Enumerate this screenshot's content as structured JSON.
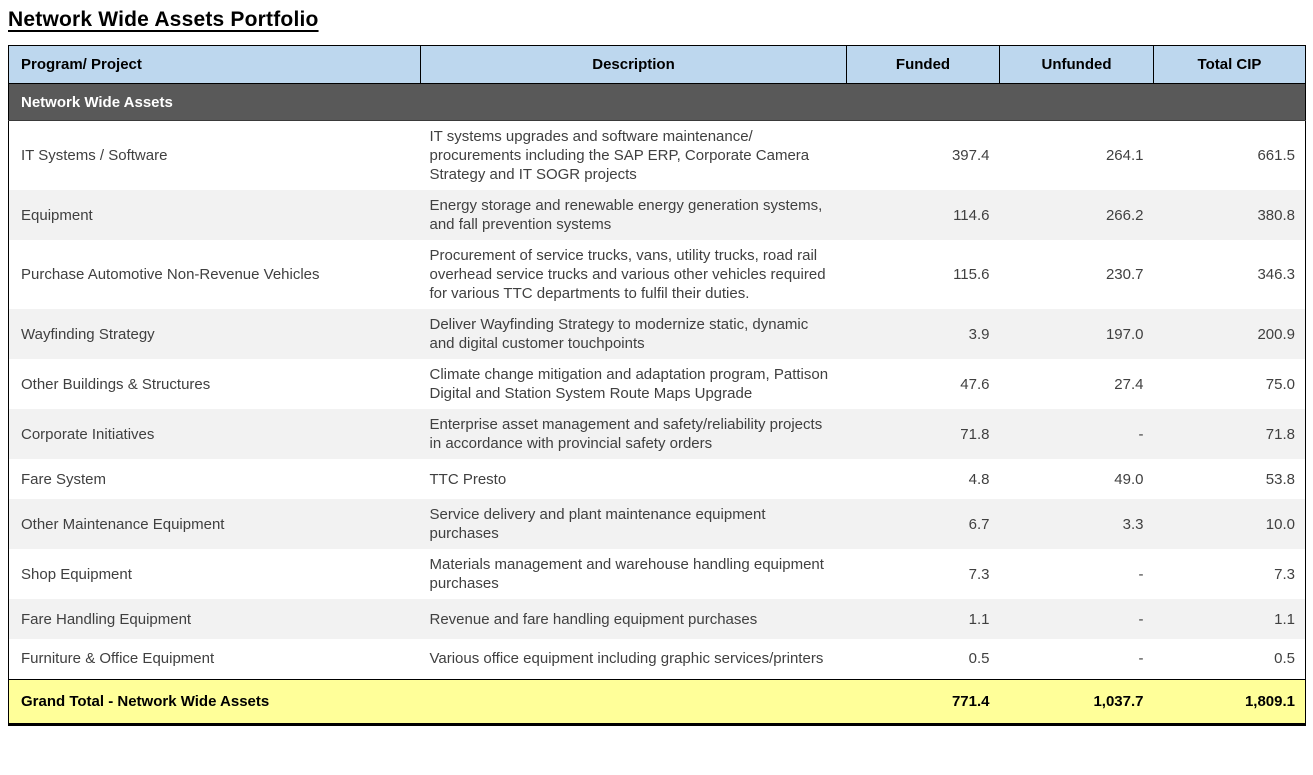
{
  "page": {
    "title": "Network Wide Assets Portfolio"
  },
  "table": {
    "columns": [
      "Program/ Project",
      "Description",
      "Funded",
      "Unfunded",
      "Total CIP"
    ],
    "section_header": "Network Wide Assets",
    "rows": [
      {
        "program": "IT Systems / Software",
        "description": "IT systems upgrades and software maintenance/ procurements including the SAP ERP, Corporate Camera Strategy and IT SOGR projects",
        "funded": "397.4",
        "unfunded": "264.1",
        "total": "661.5"
      },
      {
        "program": "Equipment",
        "description": "Energy storage and renewable energy generation systems, and fall prevention systems",
        "funded": "114.6",
        "unfunded": "266.2",
        "total": "380.8"
      },
      {
        "program": "Purchase Automotive Non-Revenue Vehicles",
        "description": "Procurement of service trucks, vans, utility trucks, road rail overhead service trucks and various other vehicles required for various TTC departments to fulfil their duties.",
        "funded": "115.6",
        "unfunded": "230.7",
        "total": "346.3"
      },
      {
        "program": "Wayfinding Strategy",
        "description": "Deliver Wayfinding Strategy to modernize static, dynamic and digital customer touchpoints",
        "funded": "3.9",
        "unfunded": "197.0",
        "total": "200.9"
      },
      {
        "program": "Other Buildings & Structures",
        "description": "Climate change mitigation and adaptation program, Pattison Digital and Station System Route Maps Upgrade",
        "funded": "47.6",
        "unfunded": "27.4",
        "total": "75.0"
      },
      {
        "program": "Corporate Initiatives",
        "description": "Enterprise asset management and safety/reliability projects in accordance with provincial safety orders",
        "funded": "71.8",
        "unfunded": "-",
        "total": "71.8"
      },
      {
        "program": "Fare System",
        "description": "TTC Presto",
        "funded": "4.8",
        "unfunded": "49.0",
        "total": "53.8"
      },
      {
        "program": "Other Maintenance Equipment",
        "description": "Service delivery and plant maintenance equipment purchases",
        "funded": "6.7",
        "unfunded": "3.3",
        "total": "10.0"
      },
      {
        "program": "Shop Equipment",
        "description": "Materials management and warehouse handling equipment purchases",
        "funded": "7.3",
        "unfunded": "-",
        "total": "7.3"
      },
      {
        "program": "Fare Handling Equipment",
        "description": "Revenue and fare handling equipment purchases",
        "funded": "1.1",
        "unfunded": "-",
        "total": "1.1"
      },
      {
        "program": "Furniture & Office Equipment",
        "description": "Various office equipment including graphic services/printers",
        "funded": "0.5",
        "unfunded": "-",
        "total": "0.5"
      }
    ],
    "grand_total": {
      "label": "Grand Total - Network Wide Assets",
      "funded": "771.4",
      "unfunded": "1,037.7",
      "total": "1,809.1"
    },
    "colors": {
      "header_bg": "#BDD7EE",
      "section_bg": "#595959",
      "alt_row_bg": "#F2F2F2",
      "grand_total_bg": "#FFFF99",
      "body_text": "#404040"
    }
  }
}
